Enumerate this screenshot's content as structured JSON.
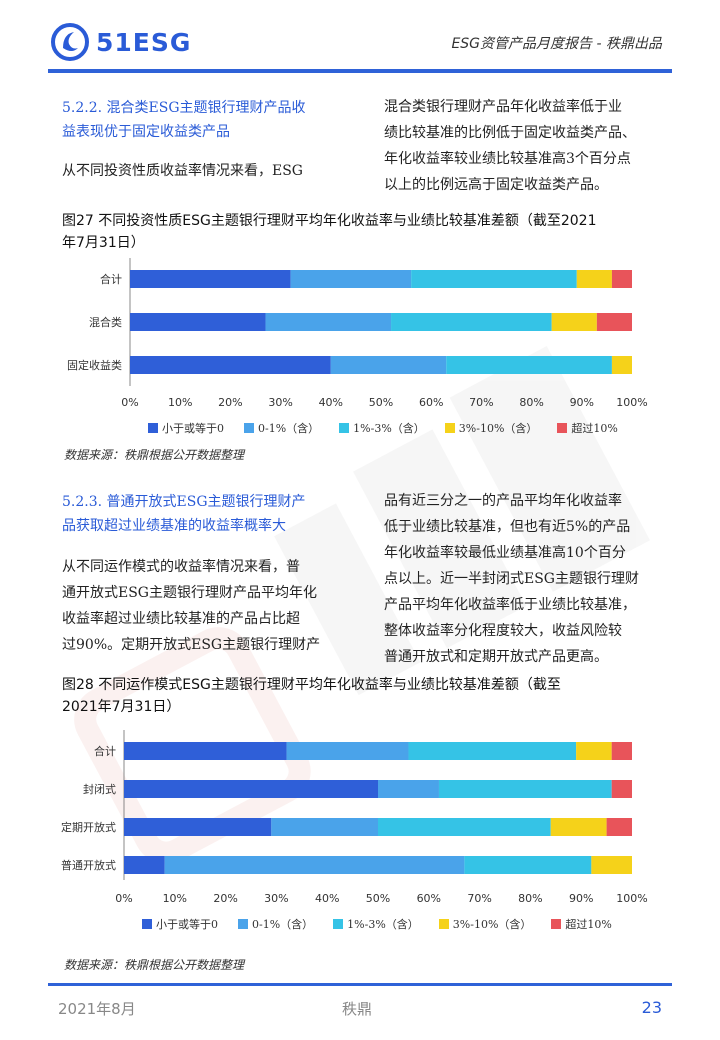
{
  "header": {
    "logo_text": "51ESG",
    "title": "ESG资管产品月度报告 - 秩鼎出品"
  },
  "section1": {
    "heading_line1": "5.2.2. 混合类ESG主题银行理财产品收",
    "heading_line2": "益表现优于固定收益类产品",
    "left_text": "从不同投资性质收益率情况来看，ESG",
    "right_lines": [
      "混合类银行理财产品年化收益率低于业",
      "绩比较基准的比例低于固定收益类产品、",
      "年化收益率较业绩比较基准高3个百分点",
      "以上的比例远高于固定收益类产品。"
    ]
  },
  "figure27": {
    "title_line1": "图27 不同投资性质ESG主题银行理财平均年化收益率与业绩比较基准差额（截至2021",
    "title_line2": "年7月31日）",
    "source": "数据来源：秩鼎根据公开数据整理"
  },
  "section2": {
    "heading_line1": "5.2.3. 普通开放式ESG主题银行理财产",
    "heading_line2": "品获取超过业绩基准的收益率概率大",
    "left_lines": [
      "从不同运作模式的收益率情况来看，普",
      "通开放式ESG主题银行理财产品平均年化",
      "收益率超过业绩比较基准的产品占比超",
      "过90%。定期开放式ESG主题银行理财产"
    ],
    "right_lines": [
      "品有近三分之一的产品平均年化收益率",
      "低于业绩比较基准，但也有近5%的产品",
      "年化收益率较最低业绩基准高10个百分",
      "点以上。近一半封闭式ESG主题银行理财",
      "产品平均年化收益率低于业绩比较基准，",
      "整体收益率分化程度较大，收益风险较",
      "普通开放式和定期开放式产品更高。"
    ]
  },
  "figure28": {
    "title_line1": "图28 不同运作模式ESG主题银行理财平均年化收益率与业绩比较基准差额（截至",
    "title_line2": "2021年7月31日）",
    "source": "数据来源：秩鼎根据公开数据整理"
  },
  "chart_data": [
    {
      "type": "bar",
      "orientation": "horizontal",
      "stacked": true,
      "categories": [
        "合计",
        "混合类",
        "固定收益类"
      ],
      "series": [
        {
          "name": "小于或等于0",
          "values": [
            32,
            27,
            40
          ]
        },
        {
          "name": "0-1%（含）",
          "values": [
            24,
            25,
            23
          ]
        },
        {
          "name": "1%-3%（含）",
          "values": [
            33,
            32,
            33
          ]
        },
        {
          "name": "3%-10%（含）",
          "values": [
            7,
            9,
            4
          ]
        },
        {
          "name": "超过10%",
          "values": [
            4,
            7,
            0
          ]
        }
      ],
      "xlim": [
        0,
        100
      ],
      "x_ticks": [
        "0%",
        "10%",
        "20%",
        "30%",
        "40%",
        "50%",
        "60%",
        "70%",
        "80%",
        "90%",
        "100%"
      ],
      "legend_position": "bottom",
      "colors": [
        "#2f5fd8",
        "#4aa3ea",
        "#35c3e6",
        "#f5d21a",
        "#e8545a"
      ]
    },
    {
      "type": "bar",
      "orientation": "horizontal",
      "stacked": true,
      "categories": [
        "合计",
        "封闭式",
        "定期开放式",
        "普通开放式"
      ],
      "series": [
        {
          "name": "小于或等于0",
          "values": [
            32,
            50,
            29,
            8
          ]
        },
        {
          "name": "0-1%（含）",
          "values": [
            24,
            12,
            21,
            59
          ]
        },
        {
          "name": "1%-3%（含）",
          "values": [
            33,
            34,
            34,
            25
          ]
        },
        {
          "name": "3%-10%（含）",
          "values": [
            7,
            0,
            11,
            8
          ]
        },
        {
          "name": "超过10%",
          "values": [
            4,
            4,
            5,
            0
          ]
        }
      ],
      "xlim": [
        0,
        100
      ],
      "x_ticks": [
        "0%",
        "10%",
        "20%",
        "30%",
        "40%",
        "50%",
        "60%",
        "70%",
        "80%",
        "90%",
        "100%"
      ],
      "legend_position": "bottom",
      "colors": [
        "#2f5fd8",
        "#4aa3ea",
        "#35c3e6",
        "#f5d21a",
        "#e8545a"
      ]
    }
  ],
  "footer": {
    "date": "2021年8月",
    "brand": "秩鼎",
    "page": "23"
  }
}
